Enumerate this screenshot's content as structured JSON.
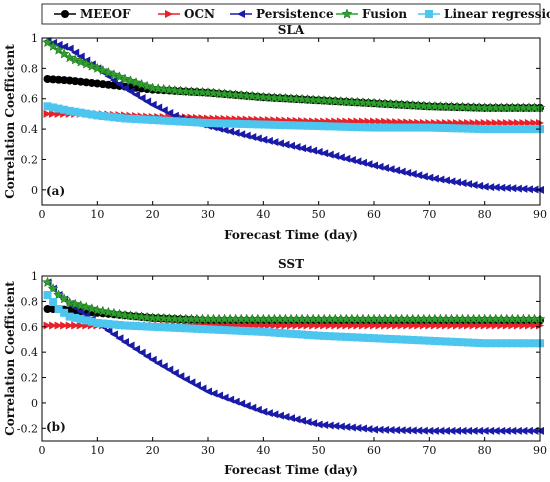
{
  "chart_data": [
    {
      "type": "line",
      "title": "SLA",
      "panel_label": "(a)",
      "xlabel": "Forecast Time (day)",
      "ylabel": "Correlation Coefficient",
      "xlim": [
        0,
        90
      ],
      "ylim": [
        -0.1,
        1
      ],
      "xticks": [
        0,
        10,
        20,
        30,
        40,
        50,
        60,
        70,
        80,
        90
      ],
      "yticks": [
        0,
        0.2,
        0.4,
        0.6,
        0.8,
        1
      ],
      "x": [
        1,
        5,
        10,
        15,
        20,
        25,
        30,
        40,
        50,
        60,
        70,
        80,
        90
      ],
      "series": [
        {
          "name": "MEEOF",
          "color": "#000000",
          "marker": "circle",
          "values": [
            0.73,
            0.72,
            0.7,
            0.68,
            0.66,
            0.65,
            0.64,
            0.61,
            0.59,
            0.57,
            0.55,
            0.54,
            0.54
          ]
        },
        {
          "name": "OCN",
          "color": "#e8202a",
          "marker": "triangle-right",
          "values": [
            0.5,
            0.5,
            0.5,
            0.49,
            0.48,
            0.48,
            0.47,
            0.46,
            0.45,
            0.45,
            0.44,
            0.44,
            0.44
          ]
        },
        {
          "name": "Persistence",
          "color": "#1a1aa8",
          "marker": "triangle-left",
          "values": [
            0.98,
            0.93,
            0.8,
            0.67,
            0.56,
            0.47,
            0.42,
            0.33,
            0.25,
            0.16,
            0.08,
            0.02,
            0.0
          ]
        },
        {
          "name": "Fusion",
          "color": "#2ea02e",
          "marker": "star",
          "values": [
            0.97,
            0.87,
            0.8,
            0.73,
            0.67,
            0.65,
            0.64,
            0.61,
            0.59,
            0.57,
            0.55,
            0.54,
            0.54
          ]
        },
        {
          "name": "Linear regression",
          "color": "#4cc6ee",
          "marker": "square",
          "values": [
            0.55,
            0.52,
            0.49,
            0.47,
            0.46,
            0.45,
            0.44,
            0.43,
            0.42,
            0.41,
            0.41,
            0.4,
            0.4
          ]
        }
      ]
    },
    {
      "type": "line",
      "title": "SST",
      "panel_label": "(b)",
      "xlabel": "Forecast Time (day)",
      "ylabel": "Correlation Coefficient",
      "xlim": [
        0,
        90
      ],
      "ylim": [
        -0.3,
        1
      ],
      "xticks": [
        0,
        10,
        20,
        30,
        40,
        50,
        60,
        70,
        80,
        90
      ],
      "yticks": [
        -0.2,
        0,
        0.2,
        0.4,
        0.6,
        0.8,
        1
      ],
      "x": [
        1,
        3,
        5,
        10,
        15,
        20,
        25,
        30,
        40,
        50,
        60,
        70,
        80,
        90
      ],
      "series": [
        {
          "name": "MEEOF",
          "color": "#000000",
          "marker": "circle",
          "values": [
            0.74,
            0.74,
            0.73,
            0.71,
            0.69,
            0.67,
            0.66,
            0.65,
            0.65,
            0.65,
            0.65,
            0.65,
            0.65,
            0.65
          ]
        },
        {
          "name": "OCN",
          "color": "#e8202a",
          "marker": "triangle-right",
          "values": [
            0.61,
            0.61,
            0.61,
            0.61,
            0.61,
            0.61,
            0.61,
            0.61,
            0.61,
            0.61,
            0.61,
            0.61,
            0.61,
            0.61
          ]
        },
        {
          "name": "Persistence",
          "color": "#1a1aa8",
          "marker": "triangle-left",
          "values": [
            0.95,
            0.85,
            0.78,
            0.63,
            0.48,
            0.34,
            0.21,
            0.09,
            -0.07,
            -0.17,
            -0.21,
            -0.22,
            -0.22,
            -0.22
          ]
        },
        {
          "name": "Fusion",
          "color": "#2ea02e",
          "marker": "star",
          "values": [
            0.95,
            0.85,
            0.79,
            0.73,
            0.69,
            0.67,
            0.66,
            0.66,
            0.66,
            0.66,
            0.66,
            0.66,
            0.66,
            0.66
          ]
        },
        {
          "name": "Linear regression",
          "color": "#4cc6ee",
          "marker": "square",
          "values": [
            0.85,
            0.74,
            0.68,
            0.63,
            0.61,
            0.6,
            0.59,
            0.58,
            0.56,
            0.53,
            0.51,
            0.49,
            0.47,
            0.47
          ]
        }
      ]
    }
  ],
  "legend": {
    "placement": "top",
    "entries": [
      "MEEOF",
      "OCN",
      "Persistence",
      "Fusion",
      "Linear regression"
    ]
  }
}
